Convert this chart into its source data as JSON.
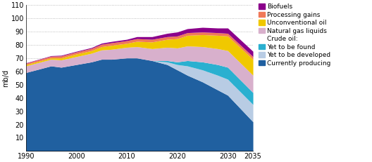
{
  "years": [
    1990,
    1993,
    1995,
    1997,
    2000,
    2003,
    2005,
    2007,
    2010,
    2012,
    2015,
    2018,
    2020,
    2022,
    2025,
    2028,
    2030,
    2035
  ],
  "currently_producing": [
    59,
    62,
    64,
    63,
    65,
    67,
    69,
    69,
    70,
    70,
    68,
    65,
    61,
    57,
    52,
    46,
    42,
    22
  ],
  "yet_to_develop": [
    0,
    0,
    0,
    0,
    0,
    0,
    0,
    0,
    0,
    0,
    0,
    2,
    4,
    7,
    9,
    11,
    12,
    13
  ],
  "yet_to_find": [
    0,
    0,
    0,
    0,
    0,
    0,
    0,
    0,
    0,
    0,
    0,
    1,
    2,
    4,
    6,
    8,
    9,
    9
  ],
  "ngl": [
    5,
    5,
    5,
    5.5,
    6,
    6.5,
    7,
    7.5,
    8,
    8.5,
    9,
    10,
    10.5,
    11,
    11.5,
    12,
    12.5,
    13
  ],
  "unconventional": [
    1,
    1,
    1,
    1.5,
    2,
    2,
    2.5,
    3,
    3,
    4,
    5,
    6,
    7,
    8,
    9,
    10,
    11,
    12
  ],
  "processing_gains": [
    1,
    1.2,
    1.3,
    1.5,
    1.5,
    1.7,
    1.8,
    1.9,
    2,
    2,
    2,
    2,
    2,
    2,
    2,
    2,
    2,
    2
  ],
  "biofuels": [
    0.3,
    0.3,
    0.4,
    0.5,
    0.5,
    0.6,
    0.8,
    1,
    1,
    1.5,
    2,
    2.5,
    3,
    3,
    3.5,
    3.5,
    4,
    4
  ],
  "colors": {
    "currently_producing": "#2060a0",
    "yet_to_develop": "#b8cce4",
    "yet_to_find": "#2ab0d0",
    "ngl": "#d8b0cc",
    "unconventional": "#f0c800",
    "processing_gains": "#f07858",
    "biofuels": "#8b008b"
  },
  "ylim": [
    0,
    110
  ],
  "ylabel": "mb/d",
  "yticks": [
    0,
    10,
    20,
    30,
    40,
    50,
    60,
    70,
    80,
    90,
    100,
    110
  ],
  "xticks": [
    1990,
    2000,
    2010,
    2020,
    2030,
    2035
  ],
  "background_color": "#ffffff"
}
